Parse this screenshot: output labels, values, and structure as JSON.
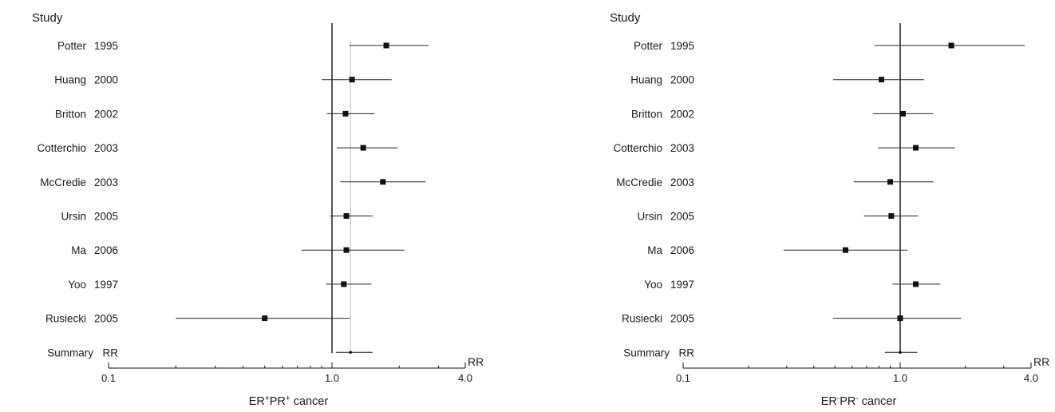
{
  "chart_data": [
    {
      "type": "forest",
      "column_header": "Study",
      "xlabel_parts": [
        {
          "t": "ER",
          "sup": false
        },
        {
          "t": "+",
          "sup": true
        },
        {
          "t": "PR",
          "sup": false
        },
        {
          "t": "+",
          "sup": true
        },
        {
          "t": " cancer",
          "sup": false
        }
      ],
      "axis_unit": "RR",
      "x_scale": "log",
      "xlim": [
        0.1,
        4.0
      ],
      "tick_labels": [
        "0.1",
        "1.0",
        "4.0"
      ],
      "reference_line": 1.0,
      "summary_line": 1.21,
      "studies": [
        {
          "name": "Potter",
          "year": "1995",
          "rr": 1.75,
          "lo": 1.2,
          "hi": 2.7
        },
        {
          "name": "Huang",
          "year": "2000",
          "rr": 1.23,
          "lo": 0.9,
          "hi": 1.85
        },
        {
          "name": "Britton",
          "year": "2002",
          "rr": 1.15,
          "lo": 0.95,
          "hi": 1.55
        },
        {
          "name": "Cotterchio",
          "year": "2003",
          "rr": 1.38,
          "lo": 1.05,
          "hi": 1.97
        },
        {
          "name": "McCredie",
          "year": "2003",
          "rr": 1.69,
          "lo": 1.09,
          "hi": 2.62
        },
        {
          "name": "Ursin",
          "year": "2005",
          "rr": 1.16,
          "lo": 0.98,
          "hi": 1.52
        },
        {
          "name": "Ma",
          "year": "2006",
          "rr": 1.16,
          "lo": 0.73,
          "hi": 2.11
        },
        {
          "name": "Yoo",
          "year": "1997",
          "rr": 1.13,
          "lo": 0.94,
          "hi": 1.5
        },
        {
          "name": "Rusiecki",
          "year": "2005",
          "rr": 0.5,
          "lo": 0.2,
          "hi": 1.2
        }
      ],
      "summary": {
        "name": "Summary",
        "year": "RR",
        "rr": 1.21,
        "lo": 1.04,
        "hi": 1.52
      }
    },
    {
      "type": "forest",
      "column_header": "Study",
      "xlabel_parts": [
        {
          "t": "ER",
          "sup": false
        },
        {
          "t": "-",
          "sup": true
        },
        {
          "t": "PR",
          "sup": false
        },
        {
          "t": "-",
          "sup": true
        },
        {
          "t": " cancer",
          "sup": false
        }
      ],
      "axis_unit": "RR",
      "x_scale": "log",
      "xlim": [
        0.1,
        4.0
      ],
      "tick_labels": [
        "0.1",
        "1.0",
        "4.0"
      ],
      "reference_line": 1.0,
      "studies": [
        {
          "name": "Potter",
          "year": "1995",
          "rr": 1.72,
          "lo": 0.76,
          "hi": 3.75
        },
        {
          "name": "Huang",
          "year": "2000",
          "rr": 0.82,
          "lo": 0.49,
          "hi": 1.29
        },
        {
          "name": "Britton",
          "year": "2002",
          "rr": 1.03,
          "lo": 0.75,
          "hi": 1.42
        },
        {
          "name": "Cotterchio",
          "year": "2003",
          "rr": 1.18,
          "lo": 0.79,
          "hi": 1.79
        },
        {
          "name": "McCredie",
          "year": "2003",
          "rr": 0.9,
          "lo": 0.61,
          "hi": 1.42
        },
        {
          "name": "Ursin",
          "year": "2005",
          "rr": 0.91,
          "lo": 0.68,
          "hi": 1.21
        },
        {
          "name": "Ma",
          "year": "2006",
          "rr": 0.56,
          "lo": 0.29,
          "hi": 1.08
        },
        {
          "name": "Yoo",
          "year": "1997",
          "rr": 1.18,
          "lo": 0.92,
          "hi": 1.53
        },
        {
          "name": "Rusiecki",
          "year": "2005",
          "rr": 1.0,
          "lo": 0.49,
          "hi": 1.91
        }
      ],
      "summary": {
        "name": "Summary",
        "year": "RR",
        "rr": 1.0,
        "lo": 0.85,
        "hi": 1.2
      }
    }
  ]
}
